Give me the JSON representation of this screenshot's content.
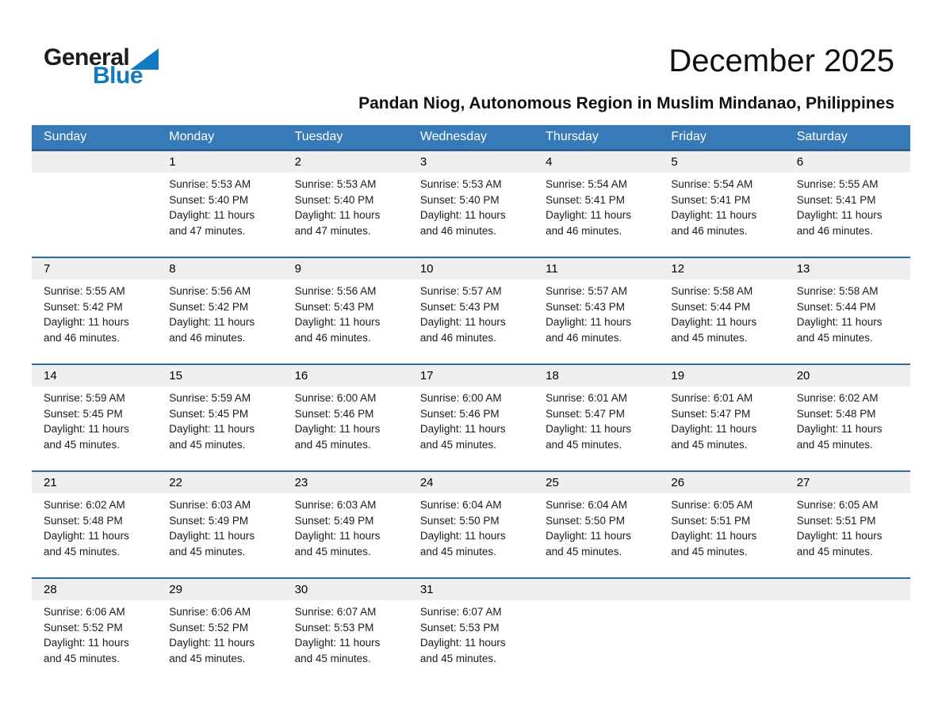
{
  "logo": {
    "text_general": "General",
    "text_blue": "Blue"
  },
  "page_header": {
    "month_title": "December 2025",
    "location": "Pandan Niog, Autonomous Region in Muslim Mindanao, Philippines"
  },
  "colors": {
    "header_bar": "#377AB8",
    "header_bottom_border": "#2B5F96",
    "row_divider": "#2E6DA4",
    "day_number_band": "#EFEFEF",
    "logo_blue": "#1079BF"
  },
  "calendar": {
    "day_headers": [
      "Sunday",
      "Monday",
      "Tuesday",
      "Wednesday",
      "Thursday",
      "Friday",
      "Saturday"
    ],
    "weeks": [
      [
        null,
        {
          "day": "1",
          "lines": [
            "Sunrise: 5:53 AM",
            "Sunset: 5:40 PM",
            "Daylight: 11 hours",
            "and 47 minutes."
          ]
        },
        {
          "day": "2",
          "lines": [
            "Sunrise: 5:53 AM",
            "Sunset: 5:40 PM",
            "Daylight: 11 hours",
            "and 47 minutes."
          ]
        },
        {
          "day": "3",
          "lines": [
            "Sunrise: 5:53 AM",
            "Sunset: 5:40 PM",
            "Daylight: 11 hours",
            "and 46 minutes."
          ]
        },
        {
          "day": "4",
          "lines": [
            "Sunrise: 5:54 AM",
            "Sunset: 5:41 PM",
            "Daylight: 11 hours",
            "and 46 minutes."
          ]
        },
        {
          "day": "5",
          "lines": [
            "Sunrise: 5:54 AM",
            "Sunset: 5:41 PM",
            "Daylight: 11 hours",
            "and 46 minutes."
          ]
        },
        {
          "day": "6",
          "lines": [
            "Sunrise: 5:55 AM",
            "Sunset: 5:41 PM",
            "Daylight: 11 hours",
            "and 46 minutes."
          ]
        }
      ],
      [
        {
          "day": "7",
          "lines": [
            "Sunrise: 5:55 AM",
            "Sunset: 5:42 PM",
            "Daylight: 11 hours",
            "and 46 minutes."
          ]
        },
        {
          "day": "8",
          "lines": [
            "Sunrise: 5:56 AM",
            "Sunset: 5:42 PM",
            "Daylight: 11 hours",
            "and 46 minutes."
          ]
        },
        {
          "day": "9",
          "lines": [
            "Sunrise: 5:56 AM",
            "Sunset: 5:43 PM",
            "Daylight: 11 hours",
            "and 46 minutes."
          ]
        },
        {
          "day": "10",
          "lines": [
            "Sunrise: 5:57 AM",
            "Sunset: 5:43 PM",
            "Daylight: 11 hours",
            "and 46 minutes."
          ]
        },
        {
          "day": "11",
          "lines": [
            "Sunrise: 5:57 AM",
            "Sunset: 5:43 PM",
            "Daylight: 11 hours",
            "and 46 minutes."
          ]
        },
        {
          "day": "12",
          "lines": [
            "Sunrise: 5:58 AM",
            "Sunset: 5:44 PM",
            "Daylight: 11 hours",
            "and 45 minutes."
          ]
        },
        {
          "day": "13",
          "lines": [
            "Sunrise: 5:58 AM",
            "Sunset: 5:44 PM",
            "Daylight: 11 hours",
            "and 45 minutes."
          ]
        }
      ],
      [
        {
          "day": "14",
          "lines": [
            "Sunrise: 5:59 AM",
            "Sunset: 5:45 PM",
            "Daylight: 11 hours",
            "and 45 minutes."
          ]
        },
        {
          "day": "15",
          "lines": [
            "Sunrise: 5:59 AM",
            "Sunset: 5:45 PM",
            "Daylight: 11 hours",
            "and 45 minutes."
          ]
        },
        {
          "day": "16",
          "lines": [
            "Sunrise: 6:00 AM",
            "Sunset: 5:46 PM",
            "Daylight: 11 hours",
            "and 45 minutes."
          ]
        },
        {
          "day": "17",
          "lines": [
            "Sunrise: 6:00 AM",
            "Sunset: 5:46 PM",
            "Daylight: 11 hours",
            "and 45 minutes."
          ]
        },
        {
          "day": "18",
          "lines": [
            "Sunrise: 6:01 AM",
            "Sunset: 5:47 PM",
            "Daylight: 11 hours",
            "and 45 minutes."
          ]
        },
        {
          "day": "19",
          "lines": [
            "Sunrise: 6:01 AM",
            "Sunset: 5:47 PM",
            "Daylight: 11 hours",
            "and 45 minutes."
          ]
        },
        {
          "day": "20",
          "lines": [
            "Sunrise: 6:02 AM",
            "Sunset: 5:48 PM",
            "Daylight: 11 hours",
            "and 45 minutes."
          ]
        }
      ],
      [
        {
          "day": "21",
          "lines": [
            "Sunrise: 6:02 AM",
            "Sunset: 5:48 PM",
            "Daylight: 11 hours",
            "and 45 minutes."
          ]
        },
        {
          "day": "22",
          "lines": [
            "Sunrise: 6:03 AM",
            "Sunset: 5:49 PM",
            "Daylight: 11 hours",
            "and 45 minutes."
          ]
        },
        {
          "day": "23",
          "lines": [
            "Sunrise: 6:03 AM",
            "Sunset: 5:49 PM",
            "Daylight: 11 hours",
            "and 45 minutes."
          ]
        },
        {
          "day": "24",
          "lines": [
            "Sunrise: 6:04 AM",
            "Sunset: 5:50 PM",
            "Daylight: 11 hours",
            "and 45 minutes."
          ]
        },
        {
          "day": "25",
          "lines": [
            "Sunrise: 6:04 AM",
            "Sunset: 5:50 PM",
            "Daylight: 11 hours",
            "and 45 minutes."
          ]
        },
        {
          "day": "26",
          "lines": [
            "Sunrise: 6:05 AM",
            "Sunset: 5:51 PM",
            "Daylight: 11 hours",
            "and 45 minutes."
          ]
        },
        {
          "day": "27",
          "lines": [
            "Sunrise: 6:05 AM",
            "Sunset: 5:51 PM",
            "Daylight: 11 hours",
            "and 45 minutes."
          ]
        }
      ],
      [
        {
          "day": "28",
          "lines": [
            "Sunrise: 6:06 AM",
            "Sunset: 5:52 PM",
            "Daylight: 11 hours",
            "and 45 minutes."
          ]
        },
        {
          "day": "29",
          "lines": [
            "Sunrise: 6:06 AM",
            "Sunset: 5:52 PM",
            "Daylight: 11 hours",
            "and 45 minutes."
          ]
        },
        {
          "day": "30",
          "lines": [
            "Sunrise: 6:07 AM",
            "Sunset: 5:53 PM",
            "Daylight: 11 hours",
            "and 45 minutes."
          ]
        },
        {
          "day": "31",
          "lines": [
            "Sunrise: 6:07 AM",
            "Sunset: 5:53 PM",
            "Daylight: 11 hours",
            "and 45 minutes."
          ]
        },
        null,
        null,
        null
      ]
    ]
  }
}
